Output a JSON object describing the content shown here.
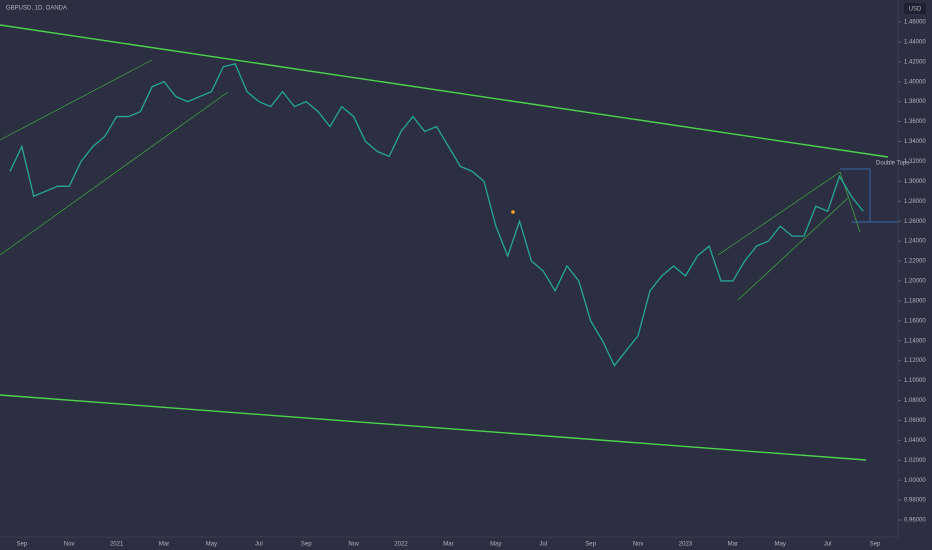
{
  "chart_data": {
    "type": "line",
    "title": "GBPUSD, 1D, OANDA",
    "currency": "USD",
    "annotation": "Double Tops",
    "categories": [
      null,
      "Sep",
      null,
      null,
      null,
      "Nov",
      null,
      null,
      null,
      "2021",
      null,
      null,
      null,
      "Mar",
      null,
      null,
      null,
      "May",
      null,
      null,
      null,
      "Jul",
      null,
      null,
      null,
      "Sep",
      null,
      null,
      null,
      "Nov",
      null,
      null,
      null,
      "2022",
      null,
      null,
      null,
      "Mar",
      null,
      null,
      null,
      "May",
      null,
      null,
      null,
      "Jul",
      null,
      null,
      null,
      "Sep",
      null,
      null,
      null,
      "Nov",
      null,
      null,
      null,
      "2023",
      null,
      null,
      null,
      "Mar",
      null,
      null,
      null,
      "May",
      null,
      null,
      null,
      "Jul",
      null,
      null,
      null,
      "Sep"
    ],
    "series": [
      {
        "name": "GBPUSD",
        "color": "#26a69a",
        "values": [
          1.31,
          1.335,
          1.285,
          1.29,
          1.295,
          1.295,
          1.32,
          1.335,
          1.345,
          1.365,
          1.365,
          1.37,
          1.395,
          1.4,
          1.385,
          1.38,
          1.385,
          1.39,
          1.415,
          1.418,
          1.39,
          1.38,
          1.375,
          1.39,
          1.375,
          1.38,
          1.37,
          1.355,
          1.375,
          1.365,
          1.34,
          1.33,
          1.325,
          1.35,
          1.365,
          1.35,
          1.355,
          1.335,
          1.315,
          1.31,
          1.3,
          1.255,
          1.225,
          1.26,
          1.22,
          1.21,
          1.19,
          1.215,
          1.2,
          1.16,
          1.14,
          1.115,
          1.13,
          1.145,
          1.19,
          1.205,
          1.215,
          1.205,
          1.225,
          1.235,
          1.2,
          1.2,
          1.22,
          1.235,
          1.24,
          1.255,
          1.245,
          1.245,
          1.275,
          1.27,
          1.305,
          1.285,
          1.27,
          null
        ]
      }
    ],
    "ylim": [
      0.943,
      1.482
    ],
    "yticks": [
      {
        "value": 0.96,
        "label": "0.96000"
      },
      {
        "value": 0.98,
        "label": "0.98000"
      },
      {
        "value": 1,
        "label": "1.00000"
      },
      {
        "value": 1.02,
        "label": "1.02000"
      },
      {
        "value": 1.04,
        "label": "1.04000"
      },
      {
        "value": 1.06,
        "label": "1.06000"
      },
      {
        "value": 1.08,
        "label": "1.08000"
      },
      {
        "value": 1.1,
        "label": "1.10000"
      },
      {
        "value": 1.12,
        "label": "1.12000"
      },
      {
        "value": 1.14,
        "label": "1.14000"
      },
      {
        "value": 1.16,
        "label": "1.16000"
      },
      {
        "value": 1.18,
        "label": "1.18000"
      },
      {
        "value": 1.2,
        "label": "1.20000"
      },
      {
        "value": 1.22,
        "label": "1.22000"
      },
      {
        "value": 1.24,
        "label": "1.24000"
      },
      {
        "value": 1.26,
        "label": "1.26000"
      },
      {
        "value": 1.28,
        "label": "1.28000"
      },
      {
        "value": 1.3,
        "label": "1.30000"
      },
      {
        "value": 1.32,
        "label": "1.32000"
      },
      {
        "value": 1.34,
        "label": "1.34000"
      },
      {
        "value": 1.36,
        "label": "1.36000"
      },
      {
        "value": 1.38,
        "label": "1.38000"
      },
      {
        "value": 1.4,
        "label": "1.40000"
      },
      {
        "value": 1.42,
        "label": "1.42000"
      },
      {
        "value": 1.44,
        "label": "1.44000"
      },
      {
        "value": 1.46,
        "label": "1.46000"
      }
    ],
    "grid": false
  }
}
